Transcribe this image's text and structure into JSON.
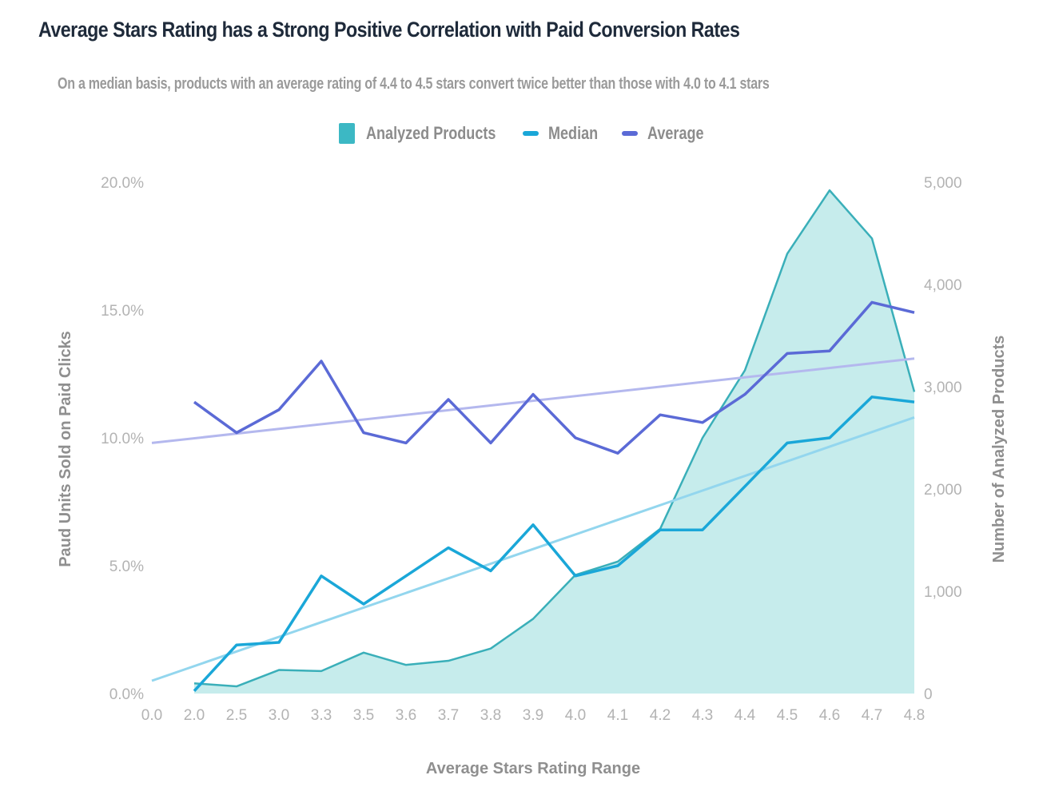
{
  "chart_data": {
    "type": "line",
    "title": "Average Stars Rating has a Strong Positive Correlation with Paid Conversion Rates",
    "subtitle": "On a median basis, products with an average rating of 4.4 to 4.5 stars convert twice better than those with 4.0 to 4.1 stars",
    "xlabel": "Average Stars Rating Range",
    "ylabel": "Paud Units Sold on Paid Clicks",
    "y2label": "Number of Analyzed Products",
    "categories": [
      "0.0",
      "2.0",
      "2.5",
      "3.0",
      "3.3",
      "3.5",
      "3.6",
      "3.7",
      "3.8",
      "3.9",
      "4.0",
      "4.1",
      "4.2",
      "4.3",
      "4.4",
      "4.5",
      "4.6",
      "4.7",
      "4.8"
    ],
    "ylim": [
      0,
      20
    ],
    "y2lim": [
      0,
      5000
    ],
    "yticks": [
      "0.0%",
      "5.0%",
      "10.0%",
      "15.0%",
      "20.0%"
    ],
    "ytick_values": [
      0,
      5,
      10,
      15,
      20
    ],
    "y2ticks": [
      "0",
      "1,000",
      "2,000",
      "3,000",
      "4,000",
      "5,000"
    ],
    "y2tick_values": [
      0,
      1000,
      2000,
      3000,
      4000,
      5000
    ],
    "grid": false,
    "legend_position": "top-center",
    "legend": [
      {
        "name": "Analyzed Products",
        "kind": "area",
        "color": "#3cb8c4"
      },
      {
        "name": "Median",
        "kind": "line",
        "color": "#1aa7d8"
      },
      {
        "name": "Average",
        "kind": "line",
        "color": "#5b6ad6"
      }
    ],
    "series": [
      {
        "name": "Analyzed Products",
        "type": "area",
        "axis": "right",
        "color": "#3aafb9",
        "fill": "#c6ecec",
        "values": [
          null,
          100,
          70,
          230,
          220,
          400,
          280,
          320,
          440,
          730,
          1160,
          1290,
          1610,
          2500,
          3160,
          4300,
          4920,
          4450,
          2950
        ]
      },
      {
        "name": "Median",
        "type": "line",
        "axis": "left",
        "color": "#1aa7d8",
        "values": [
          null,
          0.1,
          1.9,
          2.0,
          4.6,
          3.5,
          4.6,
          5.7,
          4.8,
          6.6,
          4.6,
          5.0,
          6.4,
          6.4,
          8.1,
          9.8,
          10.0,
          11.6,
          11.4
        ]
      },
      {
        "name": "Average",
        "type": "line",
        "axis": "left",
        "color": "#5b6ad6",
        "values": [
          null,
          11.4,
          10.2,
          11.1,
          13.0,
          10.2,
          9.8,
          11.5,
          9.8,
          11.7,
          10.0,
          9.4,
          10.9,
          10.6,
          11.7,
          13.3,
          13.4,
          15.3,
          14.9
        ]
      },
      {
        "name": "Average Trend",
        "type": "trendline",
        "axis": "left",
        "color": "#b4b8ee",
        "start": 9.8,
        "end": 13.1
      },
      {
        "name": "Median Trend",
        "type": "trendline",
        "axis": "left",
        "color": "#93d6ee",
        "start": 0.5,
        "end": 10.8
      }
    ]
  }
}
